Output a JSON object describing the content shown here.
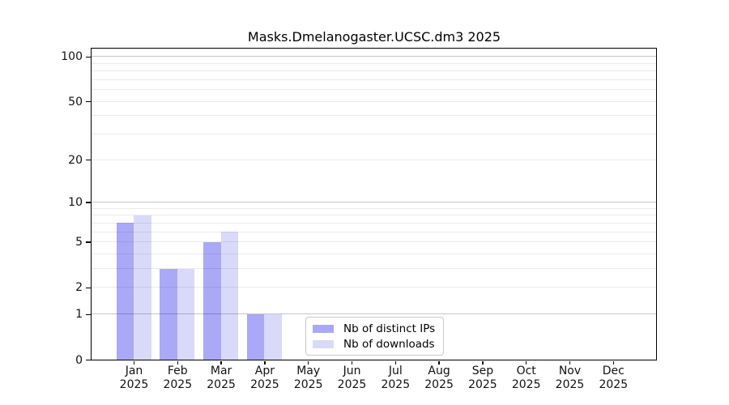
{
  "title": "Masks.Dmelanogaster.UCSC.dm3 2025",
  "chart_data": {
    "type": "bar",
    "title": "Masks.Dmelanogaster.UCSC.dm3 2025",
    "categories": [
      "Jan",
      "Feb",
      "Mar",
      "Apr",
      "May",
      "Jun",
      "Jul",
      "Aug",
      "Sep",
      "Oct",
      "Nov",
      "Dec"
    ],
    "year": "2025",
    "series": [
      {
        "name": "Nb of distinct IPs",
        "color": "#a9a9f7",
        "values": [
          7,
          3,
          5,
          1,
          0,
          0,
          0,
          0,
          0,
          0,
          0,
          0
        ]
      },
      {
        "name": "Nb of downloads",
        "color": "#d9d9f9",
        "values": [
          8,
          3,
          6,
          1,
          0,
          0,
          0,
          0,
          0,
          0,
          0,
          0
        ]
      }
    ],
    "xlabel": "",
    "ylabel": "",
    "yscale": "log10(1+value)",
    "ylim": [
      0,
      113
    ],
    "yticks": [
      100,
      50,
      20,
      10,
      5,
      2,
      1,
      0
    ],
    "major_gridlines": [
      1,
      10,
      100
    ],
    "minor_gridlines": [
      2,
      3,
      4,
      5,
      6,
      7,
      8,
      9,
      20,
      30,
      40,
      50,
      60,
      70,
      80,
      90
    ],
    "grid": "on",
    "legend_position": "lower center inside plot",
    "colors": {
      "major_grid": "rgba(0,0,0,0.22)",
      "minor_grid": "rgba(0,0,0,0.08)",
      "axis": "#000000",
      "text": "#111111"
    }
  }
}
